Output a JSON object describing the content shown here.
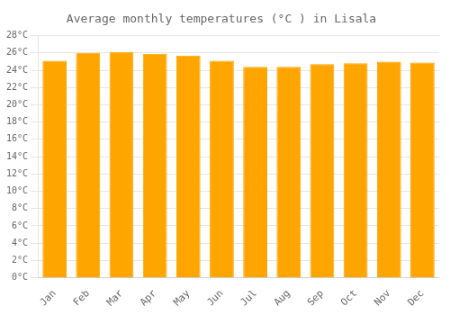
{
  "chart_data": {
    "type": "bar",
    "title": "Average monthly temperatures (°C ) in Lisala",
    "categories": [
      "Jan",
      "Feb",
      "Mar",
      "Apr",
      "May",
      "Jun",
      "Jul",
      "Aug",
      "Sep",
      "Oct",
      "Nov",
      "Dec"
    ],
    "values": [
      25.1,
      26.0,
      26.1,
      25.9,
      25.7,
      25.1,
      24.4,
      24.4,
      24.7,
      24.8,
      25.0,
      24.9
    ],
    "color": "#FFA500",
    "ylim": [
      0,
      28
    ],
    "yticks": [
      {
        "value": 0,
        "label": "0°C"
      },
      {
        "value": 2,
        "label": "2°C"
      },
      {
        "value": 4,
        "label": "4°C"
      },
      {
        "value": 6,
        "label": "6°C"
      },
      {
        "value": 8,
        "label": "8°C"
      },
      {
        "value": 10,
        "label": "10°C"
      },
      {
        "value": 12,
        "label": "12°C"
      },
      {
        "value": 14,
        "label": "14°C"
      },
      {
        "value": 16,
        "label": "16°C"
      },
      {
        "value": 18,
        "label": "18°C"
      },
      {
        "value": 20,
        "label": "20°C"
      },
      {
        "value": 22,
        "label": "22°C"
      },
      {
        "value": 24,
        "label": "24°C"
      },
      {
        "value": 26,
        "label": "26°C"
      },
      {
        "value": 28,
        "label": "28°C"
      }
    ],
    "grid": true
  }
}
